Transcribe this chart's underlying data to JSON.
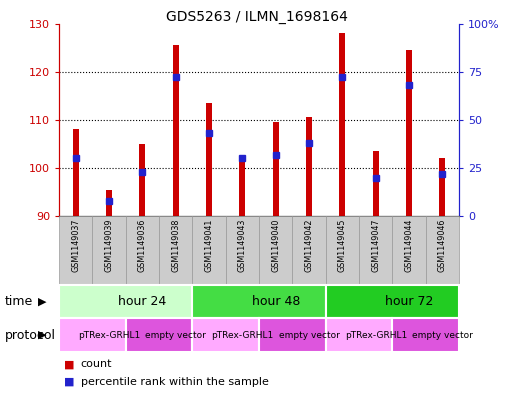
{
  "title": "GDS5263 / ILMN_1698164",
  "samples": [
    "GSM1149037",
    "GSM1149039",
    "GSM1149036",
    "GSM1149038",
    "GSM1149041",
    "GSM1149043",
    "GSM1149040",
    "GSM1149042",
    "GSM1149045",
    "GSM1149047",
    "GSM1149044",
    "GSM1149046"
  ],
  "count_values": [
    108,
    95.5,
    105,
    125.5,
    113.5,
    102.5,
    109.5,
    110.5,
    128,
    103.5,
    124.5,
    102
  ],
  "percentile_values": [
    30,
    8,
    23,
    72,
    43,
    30,
    32,
    38,
    72,
    20,
    68,
    22
  ],
  "baseline": 90,
  "ylim_left": [
    90,
    130
  ],
  "ylim_right": [
    0,
    100
  ],
  "yticks_left": [
    90,
    100,
    110,
    120,
    130
  ],
  "yticks_right": [
    0,
    25,
    50,
    75,
    100
  ],
  "ytick_labels_right": [
    "0",
    "25",
    "50",
    "75",
    "100%"
  ],
  "bar_color": "#cc0000",
  "percentile_color": "#2222cc",
  "time_groups": [
    {
      "label": "hour 24",
      "start": 0,
      "end": 4,
      "color": "#ccffcc"
    },
    {
      "label": "hour 48",
      "start": 4,
      "end": 8,
      "color": "#44dd44"
    },
    {
      "label": "hour 72",
      "start": 8,
      "end": 12,
      "color": "#22cc22"
    }
  ],
  "protocol_groups": [
    {
      "label": "pTRex-GRHL1",
      "start": 0,
      "end": 2,
      "color": "#ffaaff"
    },
    {
      "label": "empty vector",
      "start": 2,
      "end": 4,
      "color": "#dd55dd"
    },
    {
      "label": "pTRex-GRHL1",
      "start": 4,
      "end": 6,
      "color": "#ffaaff"
    },
    {
      "label": "empty vector",
      "start": 6,
      "end": 8,
      "color": "#dd55dd"
    },
    {
      "label": "pTRex-GRHL1",
      "start": 8,
      "end": 10,
      "color": "#ffaaff"
    },
    {
      "label": "empty vector",
      "start": 10,
      "end": 12,
      "color": "#dd55dd"
    }
  ],
  "time_label": "time",
  "protocol_label": "protocol",
  "legend_count_label": "count",
  "legend_percentile_label": "percentile rank within the sample",
  "sample_bg_color": "#cccccc",
  "sample_border_color": "#999999",
  "bar_width": 0.18,
  "percentile_marker_size": 5
}
